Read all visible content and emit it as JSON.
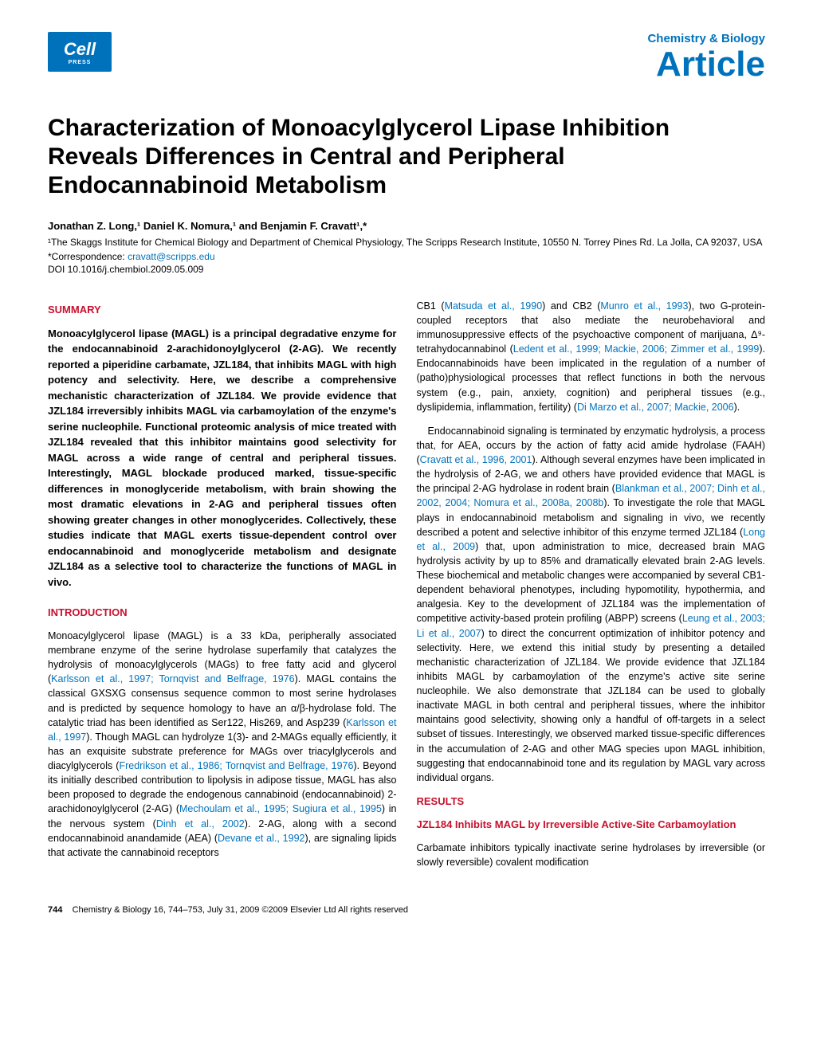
{
  "header": {
    "logo_main": "Cell",
    "logo_sub": "PRESS",
    "journal_name": "Chemistry & Biology",
    "article_type": "Article"
  },
  "title": "Characterization of Monoacylglycerol Lipase Inhibition Reveals Differences in Central and Peripheral Endocannabinoid Metabolism",
  "authors_line": "Jonathan Z. Long,¹ Daniel K. Nomura,¹ and Benjamin F. Cravatt¹,*",
  "affiliation": "¹The Skaggs Institute for Chemical Biology and Department of Chemical Physiology, The Scripps Research Institute, 10550 N. Torrey Pines Rd. La Jolla, CA 92037, USA",
  "correspondence_label": "*Correspondence: ",
  "correspondence_email": "cravatt@scripps.edu",
  "doi": "DOI 10.1016/j.chembiol.2009.05.009",
  "left_col": {
    "summary_heading": "SUMMARY",
    "summary_body": "Monoacylglycerol lipase (MAGL) is a principal degradative enzyme for the endocannabinoid 2-arachidonoylglycerol (2-AG). We recently reported a piperidine carbamate, JZL184, that inhibits MAGL with high potency and selectivity. Here, we describe a comprehensive mechanistic characterization of JZL184. We provide evidence that JZL184 irreversibly inhibits MAGL via carbamoylation of the enzyme's serine nucleophile. Functional proteomic analysis of mice treated with JZL184 revealed that this inhibitor maintains good selectivity for MAGL across a wide range of central and peripheral tissues. Interestingly, MAGL blockade produced marked, tissue-specific differences in monoglyceride metabolism, with brain showing the most dramatic elevations in 2-AG and peripheral tissues often showing greater changes in other monoglycerides. Collectively, these studies indicate that MAGL exerts tissue-dependent control over endocannabinoid and monoglyceride metabolism and designate JZL184 as a selective tool to characterize the functions of MAGL in vivo.",
    "intro_heading": "INTRODUCTION",
    "intro_p1a": "Monoacylglycerol lipase (MAGL) is a 33 kDa, peripherally associated membrane enzyme of the serine hydrolase superfamily that catalyzes the hydrolysis of monoacylglycerols (MAGs) to free fatty acid and glycerol (",
    "intro_p1_ref1": "Karlsson et al., 1997; Tornqvist and Belfrage, 1976",
    "intro_p1b": "). MAGL contains the classical GXSXG consensus sequence common to most serine hydrolases and is predicted by sequence homology to have an α/β-hydrolase fold. The catalytic triad has been identified as Ser122, His269, and Asp239 (",
    "intro_p1_ref2": "Karlsson et al., 1997",
    "intro_p1c": "). Though MAGL can hydrolyze 1(3)- and 2-MAGs equally efficiently, it has an exquisite substrate preference for MAGs over triacylglycerols and diacylglycerols (",
    "intro_p1_ref3": "Fredrikson et al., 1986; Tornqvist and Belfrage, 1976",
    "intro_p1d": "). Beyond its initially described contribution to lipolysis in adipose tissue, MAGL has also been proposed to degrade the endogenous cannabinoid (endocannabinoid) 2-arachidonoylglycerol (2-AG) (",
    "intro_p1_ref4": "Mechoulam et al., 1995; Sugiura et al., 1995",
    "intro_p1e": ") in the nervous system (",
    "intro_p1_ref5": "Dinh et al., 2002",
    "intro_p1f": "). 2-AG, along with a second endocannabinoid anandamide (AEA) (",
    "intro_p1_ref6": "Devane et al., 1992",
    "intro_p1g": "), are signaling lipids that activate the cannabinoid receptors"
  },
  "right_col": {
    "p1a": "CB1 (",
    "p1_ref1": "Matsuda et al., 1990",
    "p1b": ") and CB2 (",
    "p1_ref2": "Munro et al., 1993",
    "p1c": "), two G-protein-coupled receptors that also mediate the neurobehavioral and immunosuppressive effects of the psychoactive component of marijuana, Δ⁹-tetrahydocannabinol (",
    "p1_ref3": "Ledent et al., 1999; Mackie, 2006; Zimmer et al., 1999",
    "p1d": "). Endocannabinoids have been implicated in the regulation of a number of (patho)physiological processes that reflect functions in both the nervous system (e.g., pain, anxiety, cognition) and peripheral tissues (e.g., dyslipidemia, inflammation, fertility) (",
    "p1_ref4": "Di Marzo et al., 2007; Mackie, 2006",
    "p1e": ").",
    "p2a": "Endocannabinoid signaling is terminated by enzymatic hydrolysis, a process that, for AEA, occurs by the action of fatty acid amide hydrolase (FAAH) (",
    "p2_ref1": "Cravatt et al., 1996, 2001",
    "p2b": "). Although several enzymes have been implicated in the hydrolysis of 2-AG, we and others have provided evidence that MAGL is the principal 2-AG hydrolase in rodent brain (",
    "p2_ref2": "Blankman et al., 2007; Dinh et al., 2002, 2004; Nomura et al., 2008a, 2008b",
    "p2c": "). To investigate the role that MAGL plays in endocannabinoid metabolism and signaling in vivo, we recently described a potent and selective inhibitor of this enzyme termed JZL184 (",
    "p2_ref3": "Long et al., 2009",
    "p2d": ") that, upon administration to mice, decreased brain MAG hydrolysis activity by up to 85% and dramatically elevated brain 2-AG levels. These biochemical and metabolic changes were accompanied by several CB1-dependent behavioral phenotypes, including hypomotility, hypothermia, and analgesia. Key to the development of JZL184 was the implementation of competitive activity-based protein profiling (ABPP) screens (",
    "p2_ref4": "Leung et al., 2003; Li et al., 2007",
    "p2e": ") to direct the concurrent optimization of inhibitor potency and selectivity. Here, we extend this initial study by presenting a detailed mechanistic characterization of JZL184. We provide evidence that JZL184 inhibits MAGL by carbamoylation of the enzyme's active site serine nucleophile. We also demonstrate that JZL184 can be used to globally inactivate MAGL in both central and peripheral tissues, where the inhibitor maintains good selectivity, showing only a handful of off-targets in a select subset of tissues. Interestingly, we observed marked tissue-specific differences in the accumulation of 2-AG and other MAG species upon MAGL inhibition, suggesting that endocannabinoid tone and its regulation by MAGL vary across individual organs.",
    "results_heading": "RESULTS",
    "sub_heading": "JZL184 Inhibits MAGL by Irreversible Active-Site Carbamoylation",
    "p3": "Carbamate inhibitors typically inactivate serine hydrolases by irreversible (or slowly reversible) covalent modification"
  },
  "footer": {
    "page_num": "744",
    "citation": "Chemistry & Biology 16, 744–753, July 31, 2009 ©2009 Elsevier Ltd All rights reserved"
  },
  "colors": {
    "brand_blue": "#0072bc",
    "heading_red": "#c8102e",
    "text_black": "#000000",
    "background": "#ffffff"
  },
  "typography": {
    "title_size_pt": 22,
    "article_label_size_pt": 32,
    "body_size_pt": 9.5,
    "heading_size_pt": 10
  }
}
